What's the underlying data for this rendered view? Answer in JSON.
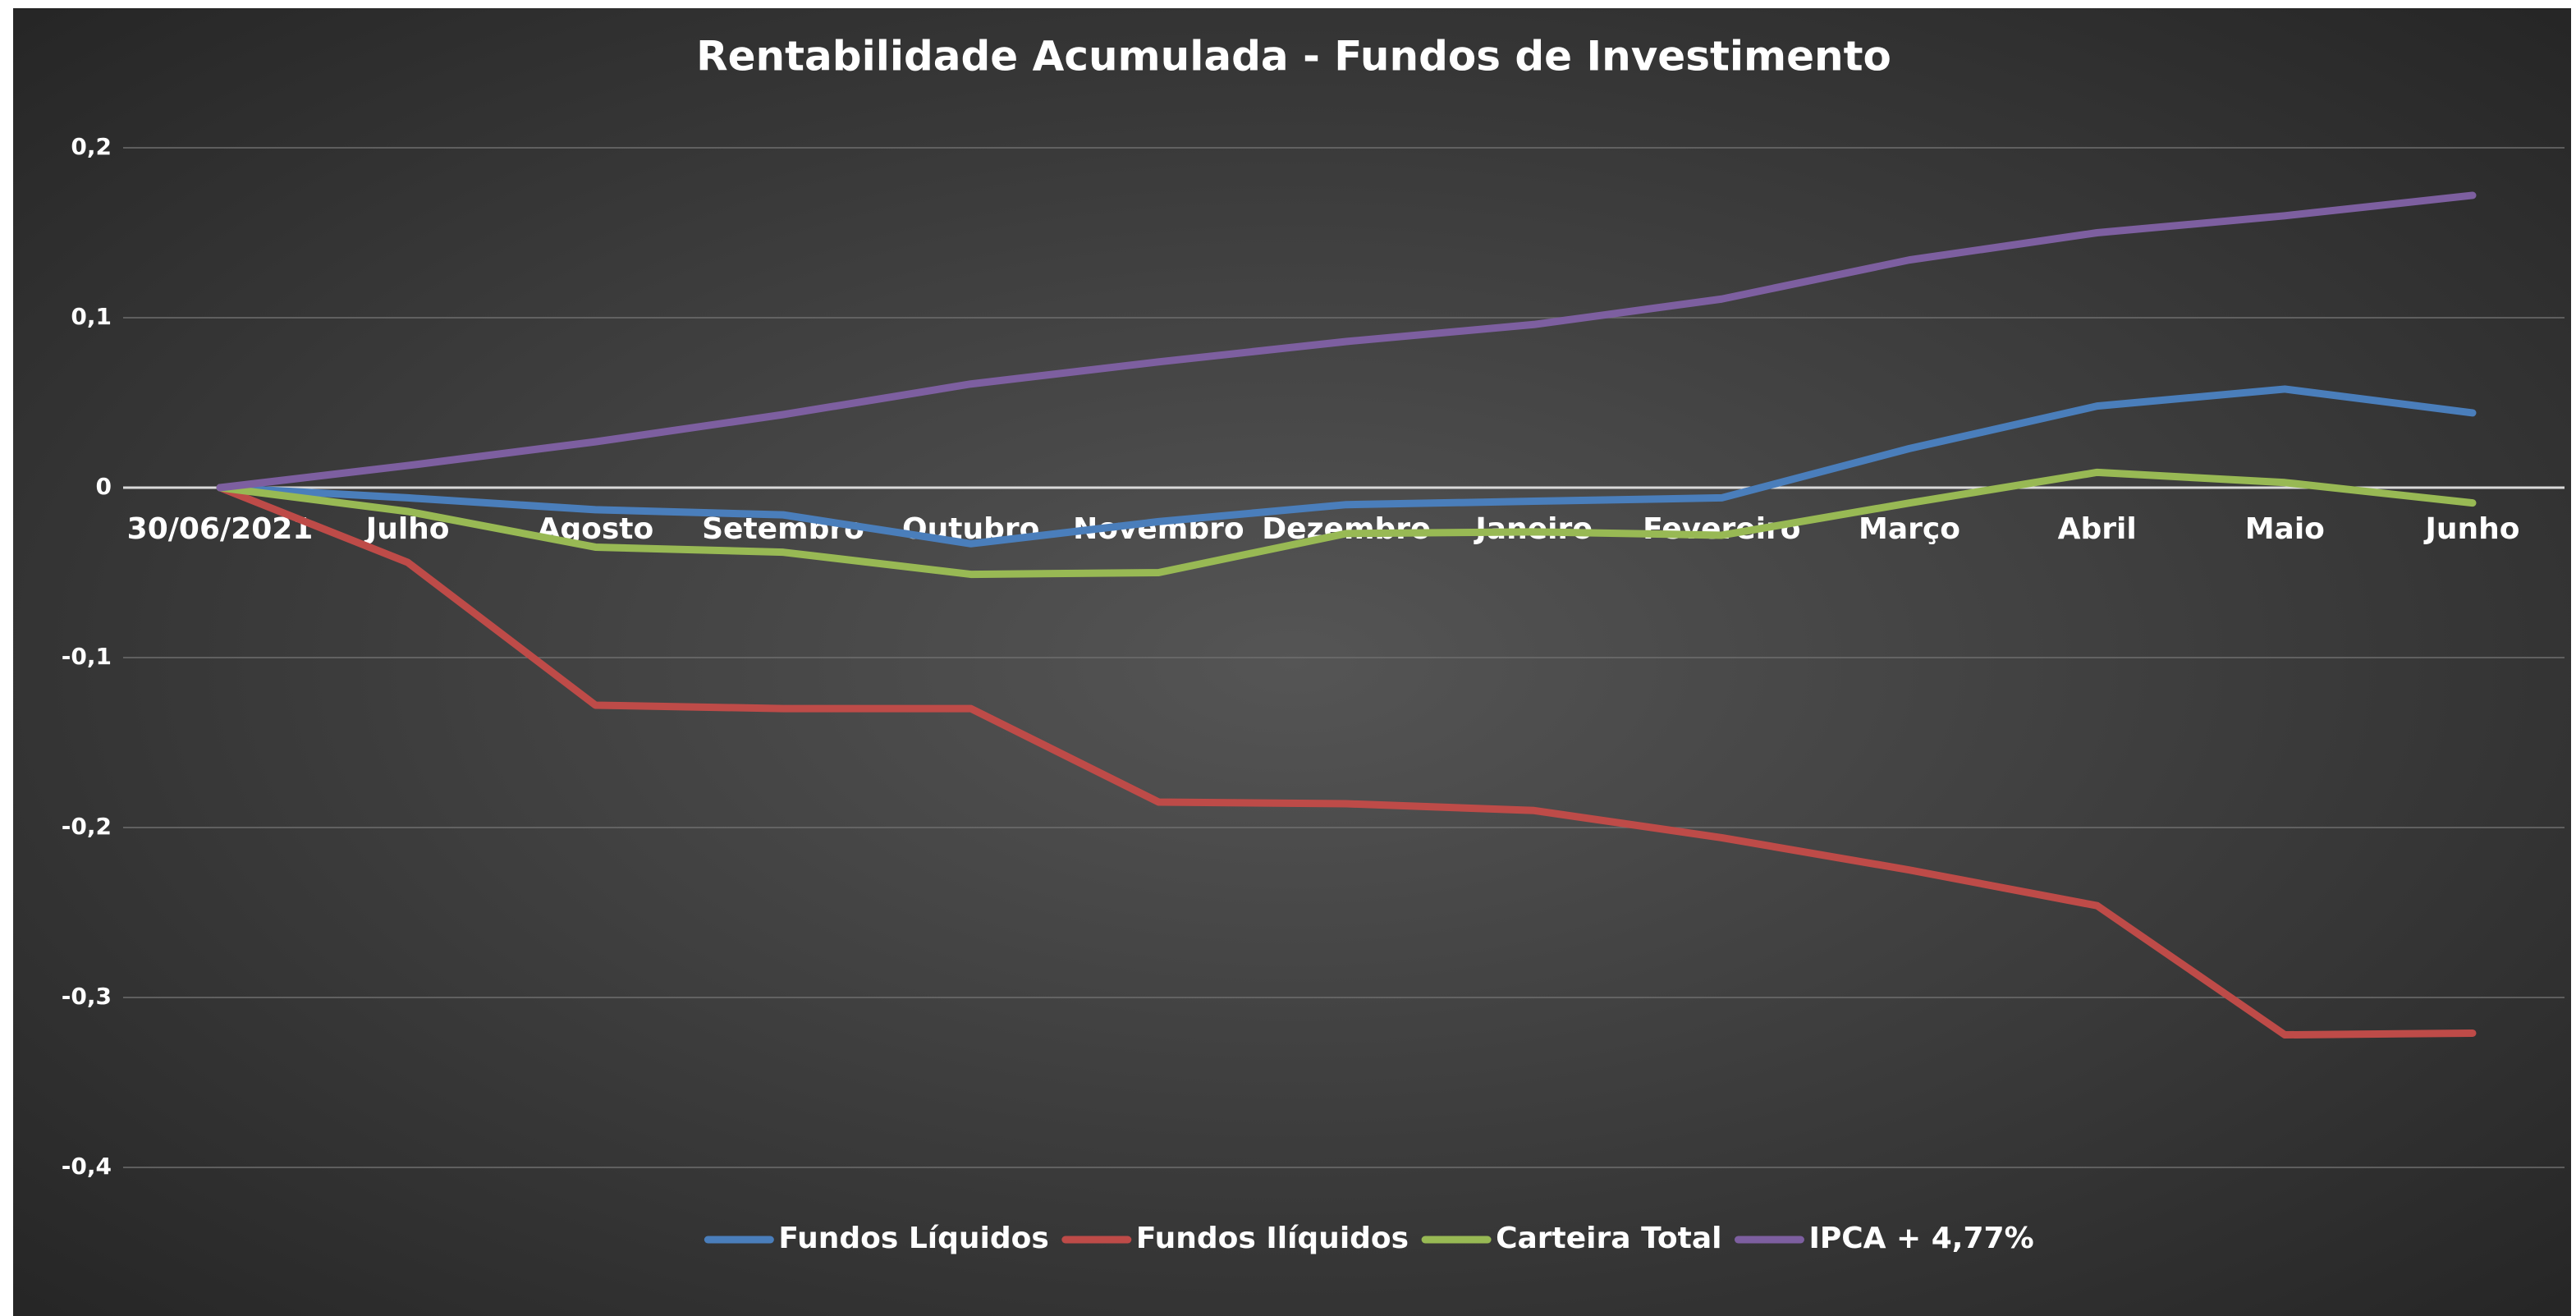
{
  "chart_data": {
    "type": "line",
    "title": "Rentabilidade Acumulada - Fundos de Investimento",
    "categories": [
      "30/06/2021",
      "Julho",
      "Agosto",
      "Setembro",
      "Outubro",
      "Novembro",
      "Dezembro",
      "Janeiro",
      "Fevereiro",
      "Março",
      "Abril",
      "Maio",
      "Junho"
    ],
    "series": [
      {
        "name": "Fundos Líquidos",
        "color": "#4a7ebb",
        "values": [
          0,
          -0.006,
          -0.013,
          -0.016,
          -0.033,
          -0.02,
          -0.01,
          -0.008,
          -0.006,
          0.023,
          0.048,
          0.058,
          0.044
        ]
      },
      {
        "name": "Fundos Ilíquidos",
        "color": "#be4b48",
        "values": [
          0,
          -0.044,
          -0.128,
          -0.13,
          -0.13,
          -0.185,
          -0.186,
          -0.19,
          -0.206,
          -0.225,
          -0.246,
          -0.322,
          -0.321
        ]
      },
      {
        "name": "Carteira Total",
        "color": "#98b954",
        "values": [
          0,
          -0.014,
          -0.035,
          -0.038,
          -0.051,
          -0.05,
          -0.027,
          -0.026,
          -0.028,
          -0.009,
          0.009,
          0.003,
          -0.009
        ]
      },
      {
        "name": "IPCA + 4,77%",
        "color": "#7d5fa0",
        "values": [
          0,
          0.013,
          0.027,
          0.043,
          0.061,
          0.074,
          0.086,
          0.096,
          0.111,
          0.134,
          0.15,
          0.16,
          0.172
        ]
      }
    ],
    "ylim": [
      -0.4,
      0.2
    ],
    "yticks": [
      {
        "value": -0.4,
        "label": "-0,4"
      },
      {
        "value": -0.3,
        "label": "-0,3"
      },
      {
        "value": -0.2,
        "label": "-0,2"
      },
      {
        "value": -0.1,
        "label": "-0,1"
      },
      0,
      {
        "value": 0.1,
        "label": "0,1"
      },
      {
        "value": 0.2,
        "label": "0,2"
      }
    ],
    "grid": true,
    "legend": "bottom"
  }
}
